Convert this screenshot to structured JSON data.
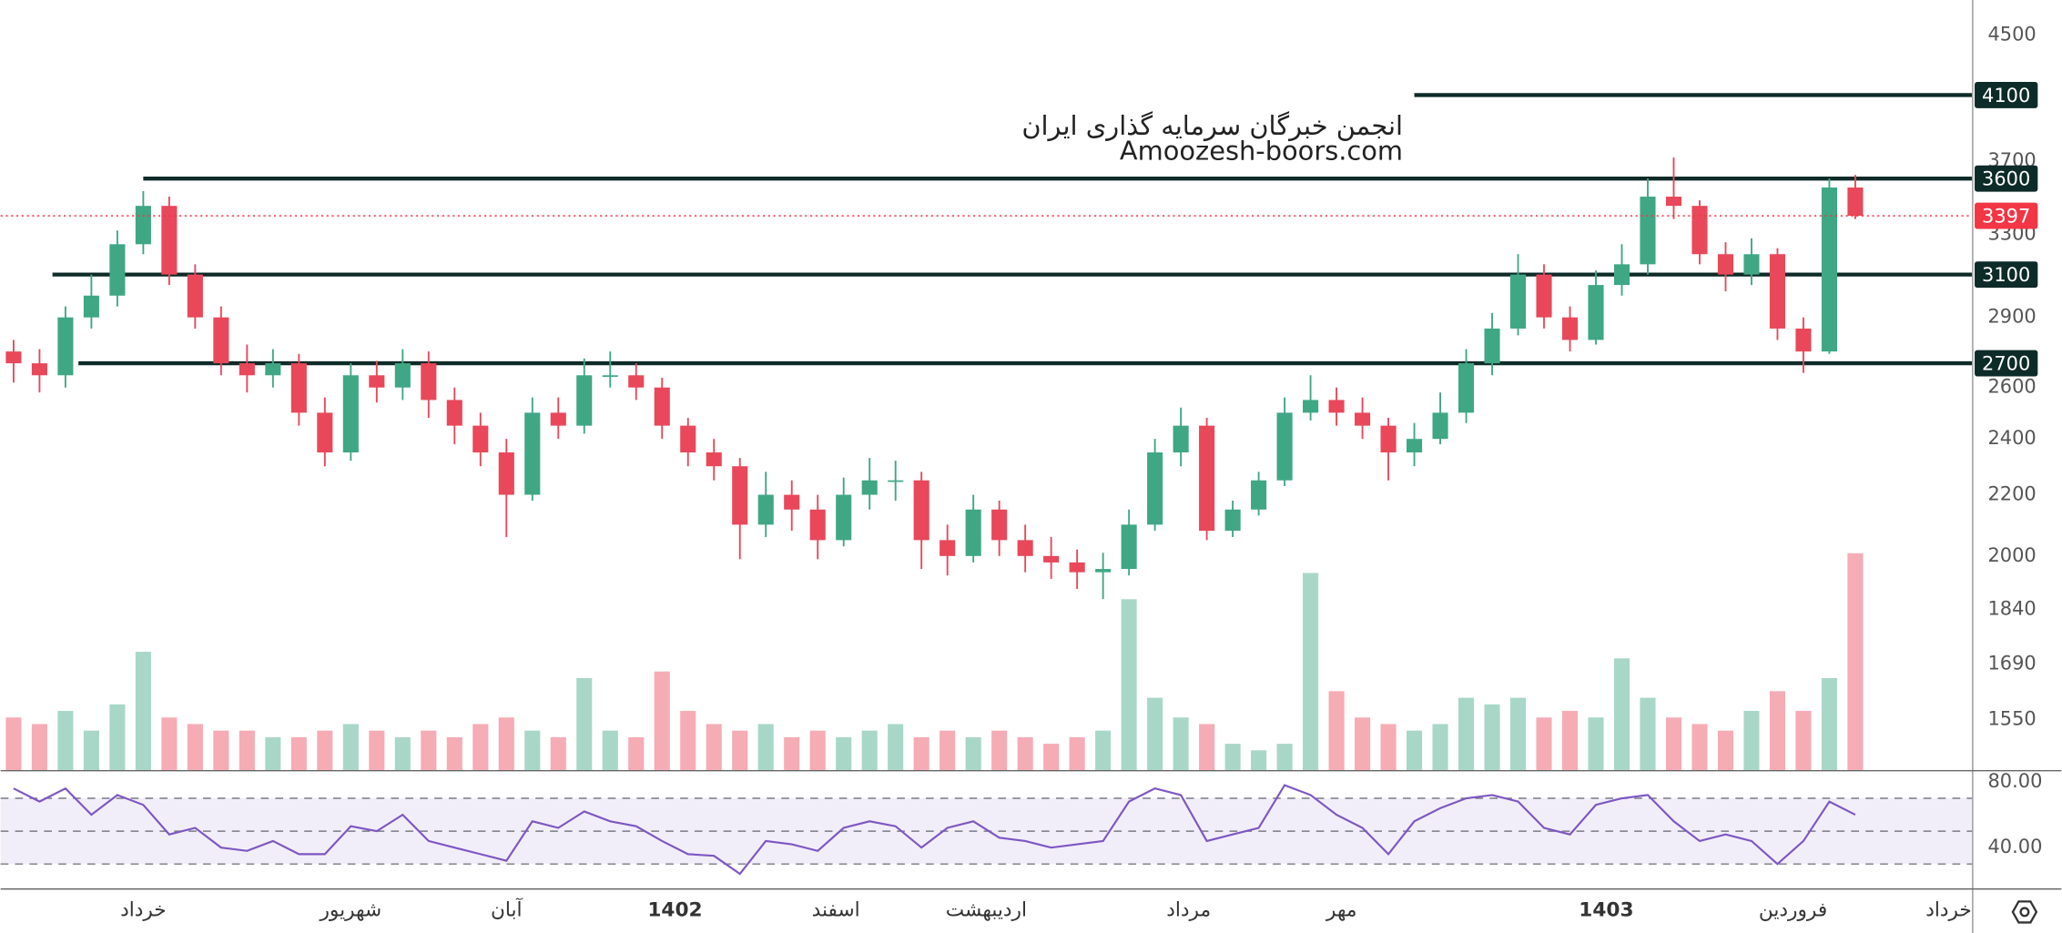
{
  "chart_data": {
    "type": "candlestick",
    "log_scale": true,
    "up_color": "#3fa784",
    "down_color": "#e8485a",
    "xlim": [
      -0.5,
      75.5
    ],
    "ylim": [
      1433,
      4754
    ],
    "yticks": [
      4500,
      3700,
      3300,
      2900,
      2600,
      2400,
      2200,
      2000,
      1840,
      1690,
      1550
    ],
    "xticks": [
      {
        "value": 5,
        "label": "خرداد",
        "bold": false
      },
      {
        "value": 13,
        "label": "شهریور",
        "bold": false
      },
      {
        "value": 19,
        "label": "آبان",
        "bold": false
      },
      {
        "value": 25.5,
        "label": "1402",
        "bold": true
      },
      {
        "value": 31.7,
        "label": "اسفند",
        "bold": false
      },
      {
        "value": 37.5,
        "label": "اردیبهشت",
        "bold": false
      },
      {
        "value": 45.3,
        "label": "مرداد",
        "bold": false
      },
      {
        "value": 51.2,
        "label": "مهر",
        "bold": false
      },
      {
        "value": 61.4,
        "label": "1403",
        "bold": true
      },
      {
        "value": 68.6,
        "label": "فروردین",
        "bold": false
      },
      {
        "value": 74.6,
        "label": "خرداد",
        "bold": false
      }
    ],
    "open": [
      2750,
      2700,
      2650,
      2900,
      3000,
      3250,
      3450,
      3100,
      2900,
      2700,
      2650,
      2700,
      2500,
      2350,
      2650,
      2600,
      2700,
      2550,
      2450,
      2350,
      2200,
      2500,
      2450,
      2650,
      2650,
      2600,
      2450,
      2350,
      2300,
      2100,
      2200,
      2150,
      2050,
      2200,
      2250,
      2250,
      2050,
      2000,
      2150,
      2050,
      2000,
      1980,
      1950,
      1960,
      2100,
      2350,
      2450,
      2080,
      2150,
      2250,
      2500,
      2550,
      2500,
      2450,
      2350,
      2400,
      2500,
      2700,
      2850,
      3100,
      2900,
      2800,
      3050,
      3150,
      3500,
      3450,
      3200,
      3100,
      3200,
      2850,
      2750,
      3550
    ],
    "high": [
      2800,
      2760,
      2950,
      3100,
      3320,
      3530,
      3500,
      3150,
      2950,
      2780,
      2760,
      2740,
      2560,
      2700,
      2710,
      2760,
      2750,
      2600,
      2500,
      2400,
      2560,
      2560,
      2720,
      2750,
      2700,
      2640,
      2480,
      2400,
      2330,
      2280,
      2250,
      2200,
      2260,
      2330,
      2320,
      2280,
      2100,
      2200,
      2180,
      2100,
      2060,
      2020,
      2010,
      2150,
      2400,
      2520,
      2480,
      2180,
      2280,
      2560,
      2650,
      2600,
      2560,
      2480,
      2460,
      2580,
      2760,
      2920,
      3200,
      3150,
      2950,
      3120,
      3250,
      3600,
      3720,
      3480,
      3260,
      3280,
      3230,
      2900,
      3600,
      3620
    ],
    "low": [
      2620,
      2580,
      2600,
      2850,
      2950,
      3200,
      3050,
      2850,
      2650,
      2580,
      2600,
      2450,
      2300,
      2320,
      2540,
      2550,
      2480,
      2380,
      2300,
      2060,
      2180,
      2400,
      2420,
      2600,
      2550,
      2400,
      2300,
      2250,
      1990,
      2060,
      2080,
      1990,
      2030,
      2150,
      2180,
      1960,
      1940,
      1980,
      2000,
      1950,
      1930,
      1900,
      1870,
      1940,
      2080,
      2300,
      2050,
      2060,
      2130,
      2230,
      2470,
      2450,
      2400,
      2250,
      2300,
      2380,
      2460,
      2650,
      2820,
      2850,
      2750,
      2780,
      3000,
      3100,
      3380,
      3150,
      3020,
      3050,
      2800,
      2660,
      2740,
      3380
    ],
    "close": [
      2700,
      2650,
      2900,
      3000,
      3250,
      3450,
      3100,
      2900,
      2700,
      2650,
      2700,
      2500,
      2350,
      2650,
      2600,
      2700,
      2550,
      2450,
      2350,
      2200,
      2500,
      2450,
      2650,
      2650,
      2600,
      2450,
      2350,
      2300,
      2100,
      2200,
      2150,
      2050,
      2200,
      2250,
      2250,
      2050,
      2000,
      2150,
      2050,
      2000,
      1980,
      1950,
      1960,
      2100,
      2350,
      2450,
      2080,
      2150,
      2250,
      2500,
      2550,
      2500,
      2450,
      2350,
      2400,
      2500,
      2700,
      2850,
      3100,
      2900,
      2800,
      3050,
      3150,
      3500,
      3450,
      3200,
      3100,
      3200,
      2850,
      2750,
      3550,
      3397
    ],
    "volume": [
      40,
      35,
      45,
      30,
      50,
      90,
      40,
      35,
      30,
      30,
      25,
      25,
      30,
      35,
      30,
      25,
      30,
      25,
      35,
      40,
      30,
      25,
      70,
      30,
      25,
      75,
      45,
      35,
      30,
      35,
      25,
      30,
      25,
      30,
      35,
      25,
      30,
      25,
      30,
      25,
      20,
      25,
      30,
      130,
      55,
      40,
      35,
      20,
      15,
      20,
      150,
      60,
      40,
      35,
      30,
      35,
      55,
      50,
      55,
      40,
      45,
      40,
      85,
      55,
      40,
      35,
      30,
      45,
      60,
      45,
      70,
      165
    ],
    "levels": [
      {
        "value": 4100,
        "from": 54
      },
      {
        "value": 3600,
        "from": 5
      },
      {
        "value": 3100,
        "from": 1.5
      },
      {
        "value": 2700,
        "from": 2.5
      }
    ],
    "level_color": "#0d2b28",
    "last_price": {
      "value": 3397,
      "color": "#f23645"
    },
    "annotations": [
      "انجمن خبرگان سرمایه گذاری ایران",
      "Amoozesh-boors.com"
    ],
    "rsi": {
      "color": "#7e57c2",
      "ylim": [
        15.2,
        87.2
      ],
      "yticks": [
        {
          "value": 80,
          "label": "80.00"
        },
        {
          "value": 40,
          "label": "40.00"
        }
      ],
      "bands": [
        30,
        50,
        70
      ],
      "values": [
        76,
        68,
        76,
        60,
        72,
        66,
        48,
        52,
        40,
        38,
        44,
        36,
        36,
        53,
        50,
        60,
        44,
        40,
        36,
        32,
        56,
        52,
        62,
        56,
        53,
        44,
        36,
        35,
        24,
        44,
        42,
        38,
        52,
        56,
        53,
        40,
        52,
        56,
        46,
        44,
        40,
        42,
        44,
        68,
        76,
        72,
        44,
        48,
        52,
        78,
        72,
        60,
        52,
        36,
        56,
        64,
        70,
        72,
        68,
        52,
        48,
        66,
        70,
        72,
        56,
        44,
        48,
        44,
        30,
        44,
        68,
        60
      ]
    }
  }
}
